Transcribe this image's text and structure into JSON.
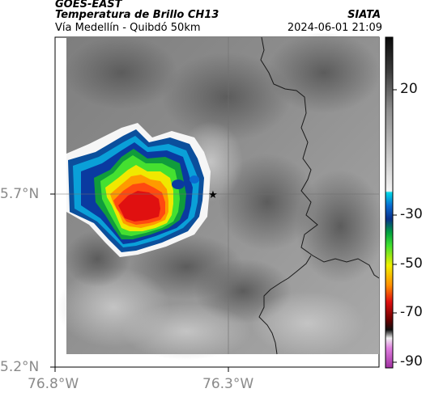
{
  "header": {
    "satellite": "GOES-EAST",
    "product": "Temperatura de Brillo CH13",
    "route": "Vía Medellín - Quibdó 50km",
    "brand": "SIATA",
    "timestamp": "2024-06-01 21:09"
  },
  "map": {
    "lat_range": [
      5.2,
      5.95
    ],
    "lon_range": [
      -76.8,
      -76.12
    ],
    "lat_ticks": [
      {
        "value": 5.7,
        "label": "5.7°N"
      },
      {
        "value": 5.2,
        "label": "5.2°N"
      }
    ],
    "lon_ticks": [
      {
        "value": -76.8,
        "label": "76.8°W"
      },
      {
        "value": -76.3,
        "label": "76.3°W"
      }
    ],
    "marker": {
      "symbol": "star",
      "lat": 5.7,
      "lon": -76.33
    },
    "storm_core_min_temp_c": -65,
    "background": "grayscale brightness temperature",
    "colors": {
      "cold_core": "#e01010",
      "storm_edge": "#0b4f9c",
      "border_line": "#1a1a1a"
    }
  },
  "colorbar": {
    "tick_labels": [
      "20",
      "-30",
      "-50",
      "-70",
      "-90"
    ],
    "range_c": [
      -95,
      40
    ]
  }
}
